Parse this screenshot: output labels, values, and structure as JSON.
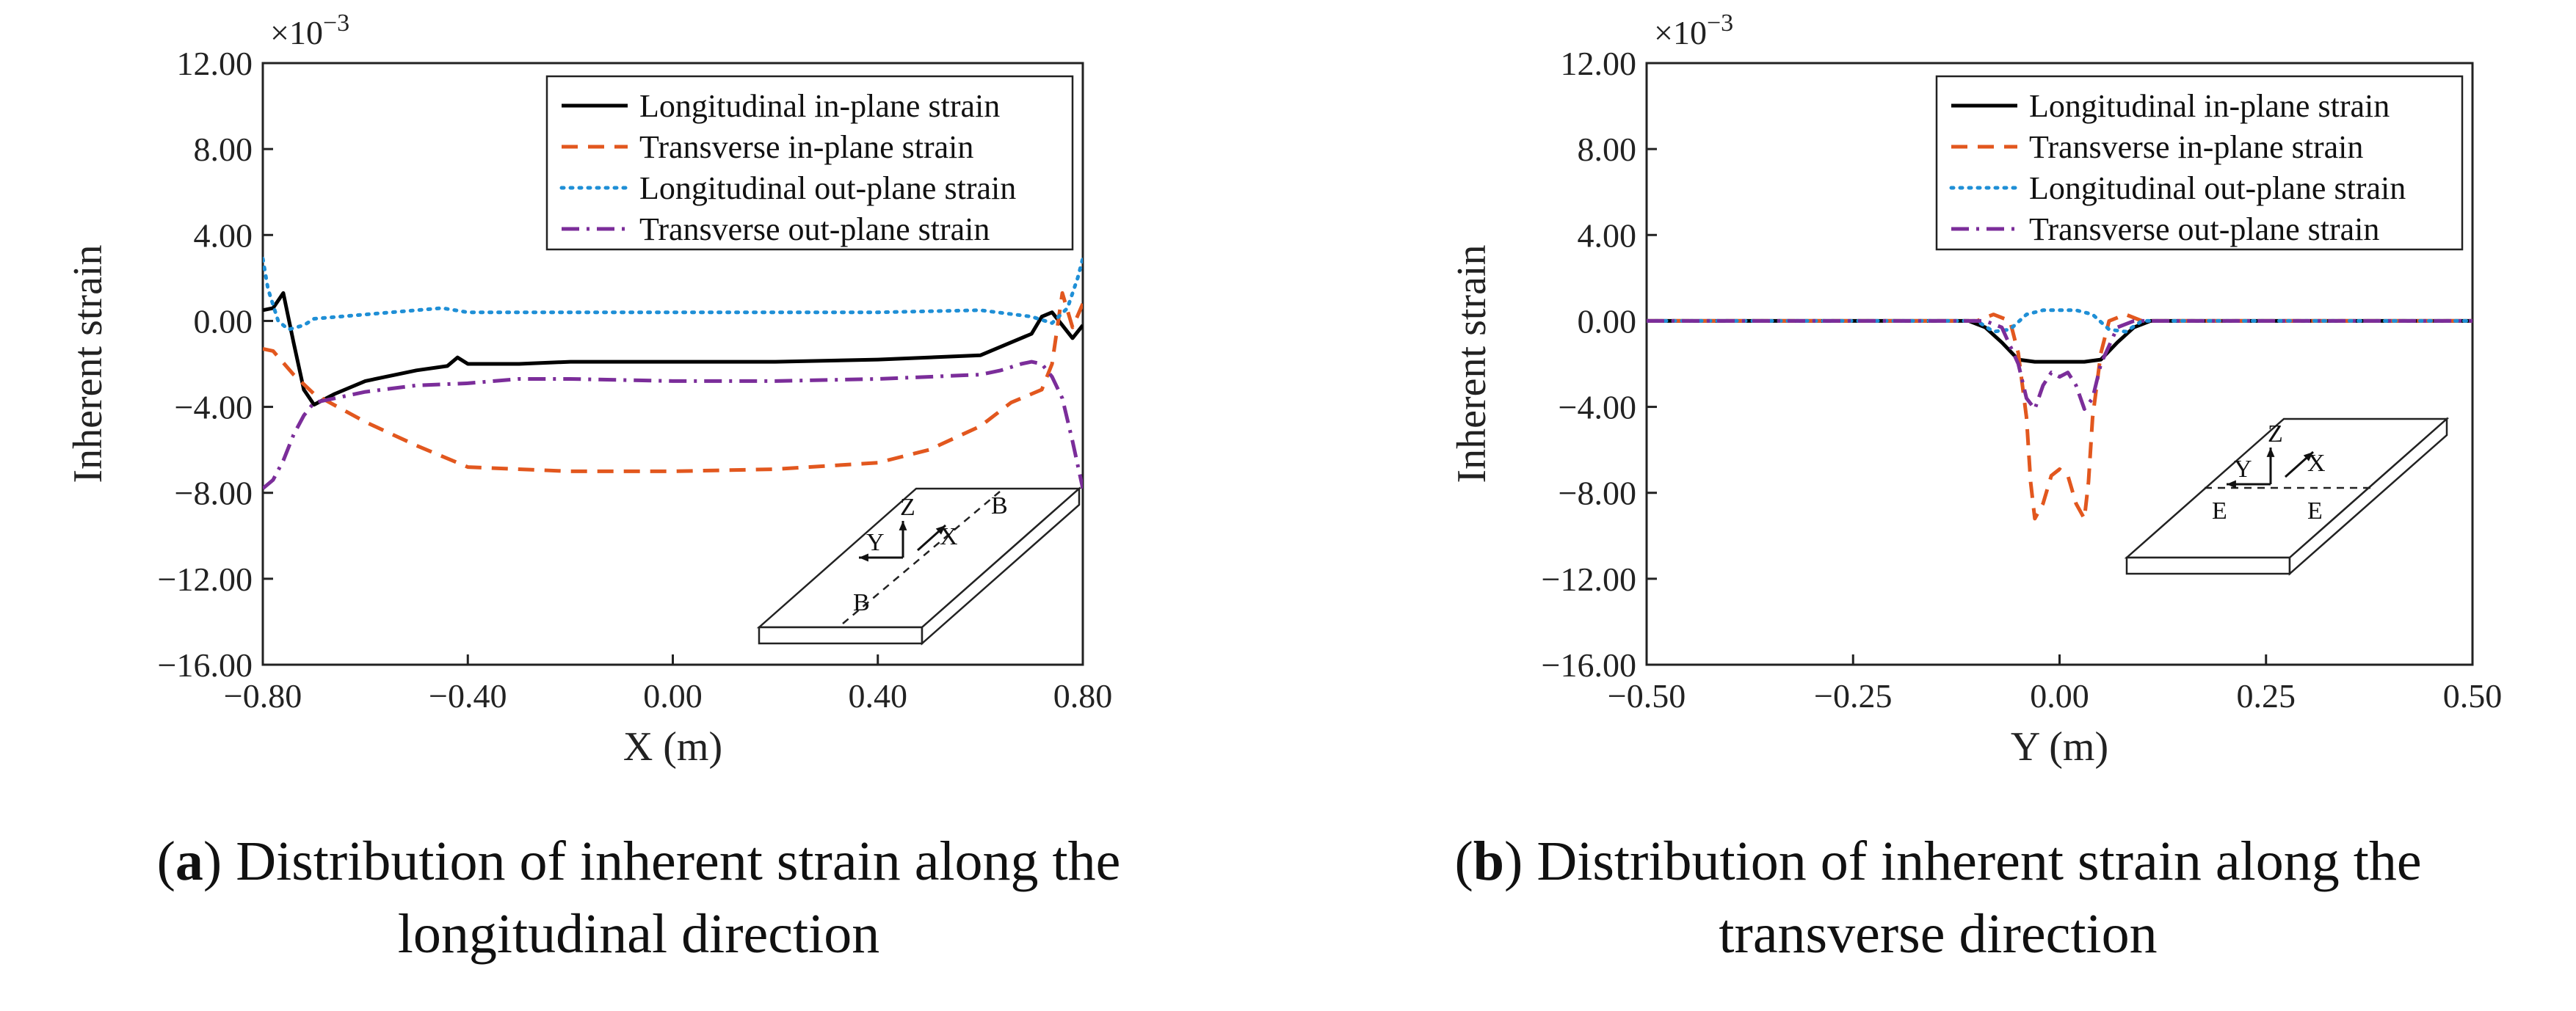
{
  "captions": [
    {
      "letter": "a",
      "open": "(",
      "close": ")",
      "line1": " Distribution of inherent strain along the",
      "line2": "longitudinal direction"
    },
    {
      "letter": "b",
      "open": "(",
      "close": ")",
      "line1": " Distribution of inherent strain along the",
      "line2": "transverse direction"
    }
  ],
  "colors": {
    "longitudinal_in": "#000000",
    "transverse_in": "#e2571e",
    "longitudinal_out": "#1f8fd6",
    "transverse_out": "#7b2d9a"
  },
  "chart_data": [
    {
      "type": "line",
      "xlabel": "X (m)",
      "ylabel": "Inherent strain",
      "multiplier": "×10",
      "multiplier_exp": "−3",
      "xlim": [
        -0.8,
        0.8
      ],
      "ylim": [
        -16,
        12
      ],
      "xticks": [
        "−0.80",
        "−0.40",
        "0.00",
        "0.40",
        "0.80"
      ],
      "xtick_values": [
        -0.8,
        -0.4,
        0,
        0.4,
        0.8
      ],
      "yticks": [
        "12.00",
        "8.00",
        "4.00",
        "0.00",
        "−4.00",
        "−8.00",
        "−12.00",
        "−16.00"
      ],
      "ytick_values": [
        12,
        8,
        4,
        0,
        -4,
        -8,
        -12,
        -16
      ],
      "legend_position": "top-right",
      "inset": {
        "labels": [
          "Z",
          "Y",
          "X",
          "B",
          "B"
        ]
      },
      "series": [
        {
          "name": "Longitudinal in-plane strain",
          "style": "solid",
          "x": [
            -0.8,
            -0.78,
            -0.76,
            -0.74,
            -0.72,
            -0.7,
            -0.66,
            -0.6,
            -0.5,
            -0.44,
            -0.42,
            -0.4,
            -0.3,
            -0.2,
            0,
            0.2,
            0.4,
            0.6,
            0.66,
            0.7,
            0.72,
            0.74,
            0.76,
            0.78,
            0.8
          ],
          "y": [
            0.5,
            0.6,
            1.3,
            -1.0,
            -3.2,
            -3.9,
            -3.4,
            -2.8,
            -2.3,
            -2.1,
            -1.7,
            -2.0,
            -2.0,
            -1.9,
            -1.9,
            -1.9,
            -1.8,
            -1.6,
            -1.0,
            -0.6,
            0.2,
            0.4,
            -0.2,
            -0.8,
            -0.2
          ]
        },
        {
          "name": "Transverse in-plane strain",
          "style": "dashed",
          "x": [
            -0.8,
            -0.78,
            -0.74,
            -0.7,
            -0.6,
            -0.5,
            -0.4,
            -0.2,
            0,
            0.2,
            0.4,
            0.5,
            0.6,
            0.66,
            0.72,
            0.74,
            0.76,
            0.78,
            0.8
          ],
          "y": [
            -1.3,
            -1.4,
            -2.5,
            -3.4,
            -4.7,
            -5.8,
            -6.8,
            -7.0,
            -7.0,
            -6.9,
            -6.6,
            -6.0,
            -4.9,
            -3.8,
            -3.2,
            -2.0,
            1.3,
            -0.3,
            0.8
          ]
        },
        {
          "name": "Longitudinal out-plane strain",
          "style": "dotted",
          "x": [
            -0.8,
            -0.79,
            -0.77,
            -0.75,
            -0.72,
            -0.7,
            -0.6,
            -0.5,
            -0.45,
            -0.4,
            -0.2,
            0,
            0.2,
            0.4,
            0.6,
            0.7,
            0.74,
            0.77,
            0.79,
            0.8
          ],
          "y": [
            2.9,
            1.5,
            0.0,
            -0.4,
            -0.2,
            0.1,
            0.3,
            0.5,
            0.6,
            0.4,
            0.4,
            0.4,
            0.4,
            0.4,
            0.5,
            0.2,
            -0.1,
            0.6,
            2.0,
            2.9
          ]
        },
        {
          "name": "Transverse out-plane strain",
          "style": "dashdot",
          "x": [
            -0.8,
            -0.78,
            -0.76,
            -0.74,
            -0.72,
            -0.7,
            -0.66,
            -0.6,
            -0.5,
            -0.4,
            -0.3,
            -0.2,
            0,
            0.2,
            0.4,
            0.6,
            0.64,
            0.68,
            0.7,
            0.72,
            0.74,
            0.76,
            0.78,
            0.8
          ],
          "y": [
            -7.8,
            -7.4,
            -6.5,
            -5.3,
            -4.4,
            -3.8,
            -3.6,
            -3.3,
            -3.0,
            -2.9,
            -2.7,
            -2.7,
            -2.8,
            -2.8,
            -2.7,
            -2.5,
            -2.3,
            -2.0,
            -1.9,
            -2.0,
            -2.6,
            -3.6,
            -5.6,
            -7.8
          ]
        }
      ]
    },
    {
      "type": "line",
      "xlabel": "Y (m)",
      "ylabel": "Inherent strain",
      "multiplier": "×10",
      "multiplier_exp": "−3",
      "xlim": [
        -0.5,
        0.5
      ],
      "ylim": [
        -16,
        12
      ],
      "xticks": [
        "−0.50",
        "−0.25",
        "0.00",
        "0.25",
        "0.50"
      ],
      "xtick_values": [
        -0.5,
        -0.25,
        0,
        0.25,
        0.5
      ],
      "yticks": [
        "12.00",
        "8.00",
        "4.00",
        "0.00",
        "−4.00",
        "−8.00",
        "−12.00",
        "−16.00"
      ],
      "ytick_values": [
        12,
        8,
        4,
        0,
        -4,
        -8,
        -12,
        -16
      ],
      "legend_position": "top-right",
      "inset": {
        "labels": [
          "Z",
          "Y",
          "X",
          "E",
          "E"
        ]
      },
      "series": [
        {
          "name": "Longitudinal in-plane strain",
          "style": "solid",
          "x": [
            -0.5,
            -0.11,
            -0.09,
            -0.07,
            -0.05,
            -0.03,
            0,
            0.03,
            0.05,
            0.07,
            0.09,
            0.11,
            0.5
          ],
          "y": [
            0,
            0,
            -0.3,
            -1.0,
            -1.8,
            -1.9,
            -1.9,
            -1.9,
            -1.8,
            -1.0,
            -0.3,
            0,
            0
          ]
        },
        {
          "name": "Transverse in-plane strain",
          "style": "dashed",
          "x": [
            -0.5,
            -0.1,
            -0.08,
            -0.06,
            -0.05,
            -0.04,
            -0.035,
            -0.03,
            -0.02,
            -0.01,
            0,
            0.01,
            0.02,
            0.03,
            0.035,
            0.04,
            0.05,
            0.06,
            0.08,
            0.1,
            0.5
          ],
          "y": [
            0,
            0,
            0.3,
            0.0,
            -1.5,
            -4.5,
            -7.5,
            -9.2,
            -8.5,
            -7.2,
            -6.9,
            -7.2,
            -8.5,
            -9.2,
            -7.5,
            -4.5,
            -1.5,
            0.0,
            0.3,
            0,
            0
          ]
        },
        {
          "name": "Longitudinal out-plane strain",
          "style": "dotted",
          "x": [
            -0.5,
            -0.1,
            -0.08,
            -0.06,
            -0.04,
            -0.02,
            0,
            0.02,
            0.04,
            0.06,
            0.08,
            0.1,
            0.5
          ],
          "y": [
            0,
            0,
            -0.5,
            -0.4,
            0.3,
            0.5,
            0.5,
            0.5,
            0.3,
            -0.4,
            -0.5,
            0,
            0
          ]
        },
        {
          "name": "Transverse out-plane strain",
          "style": "dashdot",
          "x": [
            -0.5,
            -0.09,
            -0.07,
            -0.05,
            -0.04,
            -0.03,
            -0.02,
            -0.01,
            0,
            0.01,
            0.02,
            0.03,
            0.04,
            0.05,
            0.07,
            0.09,
            0.5
          ],
          "y": [
            0,
            0,
            -0.3,
            -2.0,
            -3.6,
            -4.1,
            -3.0,
            -2.4,
            -2.6,
            -2.4,
            -3.0,
            -4.1,
            -3.6,
            -2.0,
            -0.3,
            0,
            0
          ]
        }
      ]
    }
  ]
}
